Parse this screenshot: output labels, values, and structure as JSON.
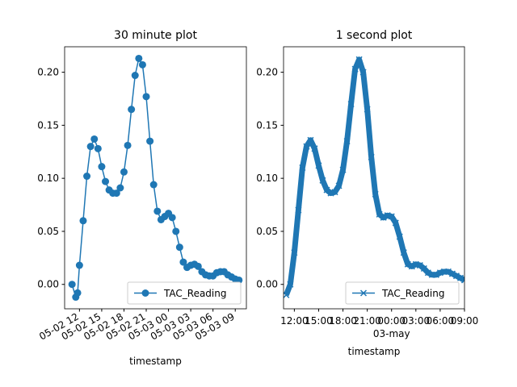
{
  "chart_data": [
    {
      "type": "line",
      "title": "30 minute plot",
      "xlabel": "timestamp",
      "legend": "lower right",
      "xtick_rotation": -30,
      "x": [
        "05-02 11:00",
        "05-02 11:30",
        "05-02 11:45",
        "05-02 12:00",
        "05-02 12:30",
        "05-02 13:00",
        "05-02 13:30",
        "05-02 14:00",
        "05-02 14:30",
        "05-02 15:00",
        "05-02 15:30",
        "05-02 16:00",
        "05-02 16:30",
        "05-02 17:00",
        "05-02 17:30",
        "05-02 18:00",
        "05-02 18:30",
        "05-02 19:00",
        "05-02 19:30",
        "05-02 20:00",
        "05-02 20:30",
        "05-02 21:00",
        "05-02 21:30",
        "05-02 22:00",
        "05-02 22:30",
        "05-02 23:00",
        "05-02 23:30",
        "05-03 00:00",
        "05-03 00:30",
        "05-03 01:00",
        "05-03 01:30",
        "05-03 02:00",
        "05-03 02:30",
        "05-03 03:00",
        "05-03 03:30",
        "05-03 04:00",
        "05-03 04:30",
        "05-03 05:00",
        "05-03 05:30",
        "05-03 06:00",
        "05-03 06:30",
        "05-03 07:00",
        "05-03 07:30",
        "05-03 08:00",
        "05-03 08:30",
        "05-03 09:00",
        "05-03 09:30"
      ],
      "series": [
        {
          "name": "TAC_Reading",
          "color": "#1f77b4",
          "marker": "o",
          "values": [
            0.0,
            -0.012,
            -0.008,
            0.018,
            0.06,
            0.102,
            0.13,
            0.137,
            0.128,
            0.111,
            0.097,
            0.089,
            0.086,
            0.086,
            0.091,
            0.106,
            0.131,
            0.165,
            0.197,
            0.213,
            0.207,
            0.177,
            0.135,
            0.094,
            0.069,
            0.061,
            0.064,
            0.067,
            0.063,
            0.05,
            0.035,
            0.021,
            0.016,
            0.018,
            0.019,
            0.017,
            0.012,
            0.009,
            0.008,
            0.008,
            0.011,
            0.012,
            0.012,
            0.009,
            0.007,
            0.005,
            0.004
          ]
        }
      ],
      "xlim": [
        "05-02 10:00",
        "05-03 10:30"
      ],
      "xticks": [
        {
          "value": "05-02 12:00",
          "label": "05-02 12"
        },
        {
          "value": "05-02 15:00",
          "label": "05-02 15"
        },
        {
          "value": "05-02 18:00",
          "label": "05-02 18"
        },
        {
          "value": "05-02 21:00",
          "label": "05-02 21"
        },
        {
          "value": "05-03 00:00",
          "label": "05-03 00"
        },
        {
          "value": "05-03 03:00",
          "label": "05-03 03"
        },
        {
          "value": "05-03 06:00",
          "label": "05-03 06"
        },
        {
          "value": "05-03 09:00",
          "label": "05-03 09"
        }
      ],
      "ylim": [
        -0.023,
        0.224
      ],
      "yticks": [
        {
          "value": 0,
          "label": "0.00"
        },
        0.05,
        {
          "value": 0.1,
          "label": "0.10"
        },
        0.15,
        {
          "value": 0.2,
          "label": "0.20"
        }
      ]
    },
    {
      "type": "line",
      "title": "1 second plot",
      "xlabel": "timestamp",
      "legend": "lower right",
      "xtick_rotation": 0,
      "x": [
        "05-02 11:00",
        "05-02 11:30",
        "05-02 12:00",
        "05-02 12:30",
        "05-02 13:00",
        "05-02 13:30",
        "05-02 14:00",
        "05-02 14:30",
        "05-02 15:00",
        "05-02 15:30",
        "05-02 16:00",
        "05-02 16:30",
        "05-02 17:00",
        "05-02 17:30",
        "05-02 18:00",
        "05-02 18:30",
        "05-02 19:00",
        "05-02 19:30",
        "05-02 20:00",
        "05-02 20:30",
        "05-02 21:00",
        "05-02 21:30",
        "05-02 22:00",
        "05-02 22:30",
        "05-02 23:00",
        "05-02 23:30",
        "05-03 00:00",
        "05-03 00:30",
        "05-03 01:00",
        "05-03 01:30",
        "05-03 02:00",
        "05-03 02:30",
        "05-03 03:00",
        "05-03 03:30",
        "05-03 04:00",
        "05-03 04:30",
        "05-03 05:00",
        "05-03 05:30",
        "05-03 06:00",
        "05-03 06:30",
        "05-03 07:00",
        "05-03 07:30",
        "05-03 08:00",
        "05-03 08:30",
        "05-03 09:00"
      ],
      "series": [
        {
          "name": "TAC_Reading",
          "color": "#1f77b4",
          "marker": "x",
          "values": [
            -0.01,
            0.0,
            0.03,
            0.07,
            0.11,
            0.13,
            0.136,
            0.128,
            0.112,
            0.098,
            0.089,
            0.086,
            0.087,
            0.093,
            0.108,
            0.135,
            0.17,
            0.203,
            0.212,
            0.2,
            0.165,
            0.12,
            0.085,
            0.066,
            0.063,
            0.065,
            0.064,
            0.058,
            0.045,
            0.03,
            0.019,
            0.017,
            0.019,
            0.018,
            0.015,
            0.011,
            0.009,
            0.009,
            0.011,
            0.012,
            0.012,
            0.01,
            0.008,
            0.006,
            0.004
          ]
        }
      ],
      "xlim": [
        "05-02 10:40",
        "05-03 09:00"
      ],
      "xticks": [
        {
          "value": "05-02 12:00",
          "label": "12:00"
        },
        {
          "value": "05-02 15:00",
          "label": "15:00"
        },
        {
          "value": "05-02 18:00",
          "label": "18:00"
        },
        {
          "value": "05-02 21:00",
          "label": "21:00"
        },
        {
          "value": "05-03 00:00",
          "label": "00:00",
          "sublabel": "03-may"
        },
        {
          "value": "05-03 03:00",
          "label": "03:00"
        },
        {
          "value": "05-03 06:00",
          "label": "06:00"
        },
        {
          "value": "05-03 09:00",
          "label": "09:00"
        }
      ],
      "ylim": [
        -0.023,
        0.224
      ],
      "yticks": [
        {
          "value": 0,
          "label": "0.00"
        },
        0.05,
        {
          "value": 0.1,
          "label": "0.10"
        },
        0.15,
        {
          "value": 0.2,
          "label": "0.20"
        }
      ]
    }
  ]
}
